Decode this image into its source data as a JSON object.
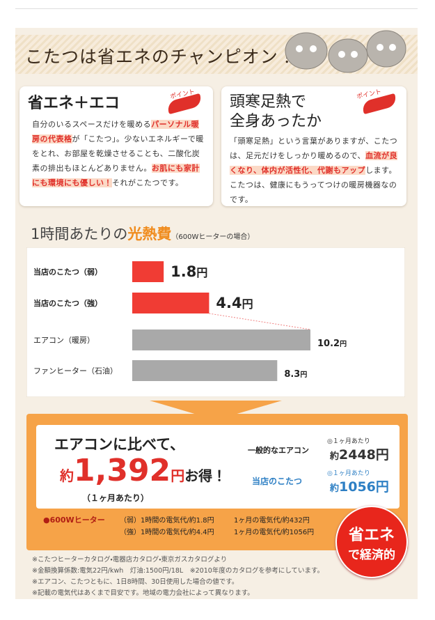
{
  "header": {
    "title": "こたつは省エネのチャンピオン！"
  },
  "cards": [
    {
      "heading": [
        "省エネ＋エコ"
      ],
      "badge": "ポイント",
      "body": [
        {
          "text": "自分のいるスペースだけを暖める"
        },
        {
          "text": "パーソナル暖房の代表格",
          "style": "mark"
        },
        {
          "text": "が「こたつ」。少ないエネルギーで暖をとれ、お部屋を乾燥させることも、二酸化炭素の排出もほとんどありません。"
        },
        {
          "text": "お肌にも家計にも環境にも優しい！",
          "style": "mark"
        },
        {
          "text": "それがこたつです。"
        }
      ]
    },
    {
      "heading": [
        "頭寒足熱で",
        "全身あったか"
      ],
      "badge": "ポイント",
      "body": [
        {
          "text": "「頭寒足熱」という言葉がありますが、こたつは、足元だけをしっかり暖めるので、"
        },
        {
          "text": "血流が良くなり、体内が活性化、代謝もアップ",
          "style": "mark"
        },
        {
          "text": "します。こたつは、健康にもうってつけの暖房機器なのです。"
        }
      ]
    }
  ],
  "chart_data": {
    "type": "bar",
    "orientation": "horizontal",
    "title": "1時間あたりの",
    "title_highlight": "光熱費",
    "subtitle": "（600Wヒーターの場合）",
    "categories": [
      "当店のこたつ（弱）",
      "当店のこたつ（強）",
      "エアコン（暖房）",
      "ファンヒーター（石油）"
    ],
    "values": [
      1.8,
      4.4,
      10.2,
      8.3
    ],
    "unit": "円",
    "colors": [
      "#f03c34",
      "#f03c34",
      "#a9a9a9",
      "#a9a9a9"
    ]
  },
  "summary": {
    "lead": "エアコンに比べて、",
    "approx": "約",
    "amount": "1,392",
    "unit": "円",
    "gain": "お得！",
    "period": "（１ヶ月あたり）",
    "compare": [
      {
        "label": "一般的なエアコン",
        "per": "◎１ヶ月あたり",
        "approx": "約",
        "amount": "2448円"
      },
      {
        "label": "当店のこたつ",
        "per": "◎１ヶ月あたり",
        "approx": "約",
        "amount": "1056円"
      }
    ],
    "spec_label": "●600Wヒーター",
    "spec_rows": [
      [
        "（弱）1時間の電気代/約1.8円",
        "1ヶ月の電気代/約432円"
      ],
      [
        "（強）1時間の電気代/約4.4円",
        "1ヶ月の電気代/約1056円"
      ]
    ],
    "badge": [
      "省エネ",
      "で経済的"
    ]
  },
  "notes": [
    "※こたつヒーターカタログ・電器店カタログ・東京ガスカタログより",
    "※金額換算係数:電気22円/kwh　灯油:1500円/18L　※2010年度のカタログを参考にしています。",
    "※エアコン、こたつともに、1日8時間、30日使用した場合の値です。",
    "※記載の電気代はあくまで目安です。地域の電力会社によって異なります。"
  ]
}
